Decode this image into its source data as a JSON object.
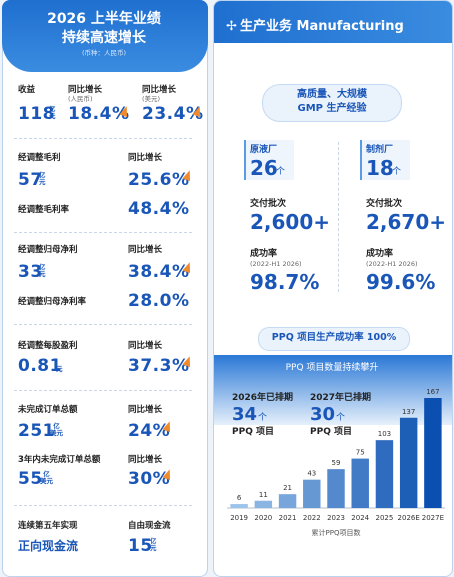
{
  "left": {
    "title": [
      "2026 上半年业绩",
      "持续高速增长"
    ],
    "currency": "(币种：人民币)",
    "revenue": {
      "label": "收益",
      "value": "118",
      "unit": [
        "亿",
        "元"
      ],
      "growth_label": "同比增长",
      "growth_note": "(人民币)",
      "growth": "18.4%",
      "growth2_label": "同比增长",
      "growth2_note": "(美元)",
      "growth2": "23.4%"
    },
    "gross_profit": {
      "label": "经调整毛利",
      "value": "57",
      "unit": [
        "亿",
        "元"
      ],
      "growth_label": "同比增长",
      "growth": "25.6%",
      "margin_label": "经调整毛利率",
      "margin": "48.4%"
    },
    "net_profit": {
      "label": "经调整归母净利",
      "value": "33",
      "unit": [
        "亿",
        "元"
      ],
      "growth_label": "同比增长",
      "growth": "38.4%",
      "margin_label": "经调整归母净利率",
      "margin": "28.0%"
    },
    "eps": {
      "label": "经调整每股盈利",
      "value": "0.81",
      "unit": [
        "元"
      ],
      "growth_label": "同比增长",
      "growth": "37.3%"
    },
    "backlog": {
      "label": "未完成订单总额",
      "value": "251",
      "unit": [
        "亿",
        "美元"
      ],
      "growth_label": "同比增长",
      "growth": "24%"
    },
    "backlog_3y": {
      "label": "3年内未完成订单总额",
      "value": "55",
      "unit": [
        "亿",
        "美元"
      ],
      "growth_label": "同比增长",
      "growth": "30%"
    },
    "cash_flow": {
      "label": "连续第五年实现",
      "value": "正向现金流",
      "fcf_label": "自由现金流",
      "fcf": "15",
      "unit": [
        "亿",
        "元"
      ]
    }
  },
  "right": {
    "header": "生产业务 Manufacturing",
    "banner": [
      "高质量、大规模",
      "GMP 生产经验"
    ],
    "columns": [
      {
        "plant": "原液厂",
        "count": "26",
        "count_unit": "个",
        "batches_label": "交付批次",
        "batches": "2,600+",
        "rate_label": "成功率",
        "rate_note": "(2022-H1 2026)",
        "rate": "98.7%"
      },
      {
        "plant": "制剂厂",
        "count": "18",
        "count_unit": "个",
        "batches_label": "交付批次",
        "batches": "2,670+",
        "rate_label": "成功率",
        "rate_note": "(2022-H1 2026)",
        "rate": "99.6%"
      }
    ],
    "ppq_banner": "PPQ 项目生产成功率 100%",
    "ppq_subtitle": "PPQ 项目数量持续攀升",
    "callouts": [
      {
        "label": "2026年已排期",
        "value": "34",
        "unit": "个",
        "text": "PPQ 项目"
      },
      {
        "label": "2027年已排期",
        "value": "30",
        "unit": "个",
        "text": "PPQ 项目"
      }
    ],
    "chart": {
      "type": "bar",
      "categories": [
        "2019",
        "2020",
        "2021",
        "2022",
        "2023",
        "2024",
        "2025",
        "2026E",
        "2027E"
      ],
      "values": [
        6,
        11,
        21,
        43,
        59,
        75,
        103,
        137,
        167
      ],
      "colors": [
        "#9cc3ea",
        "#0b4fb0"
      ],
      "xlabel": "累计PPQ项目数"
    }
  }
}
